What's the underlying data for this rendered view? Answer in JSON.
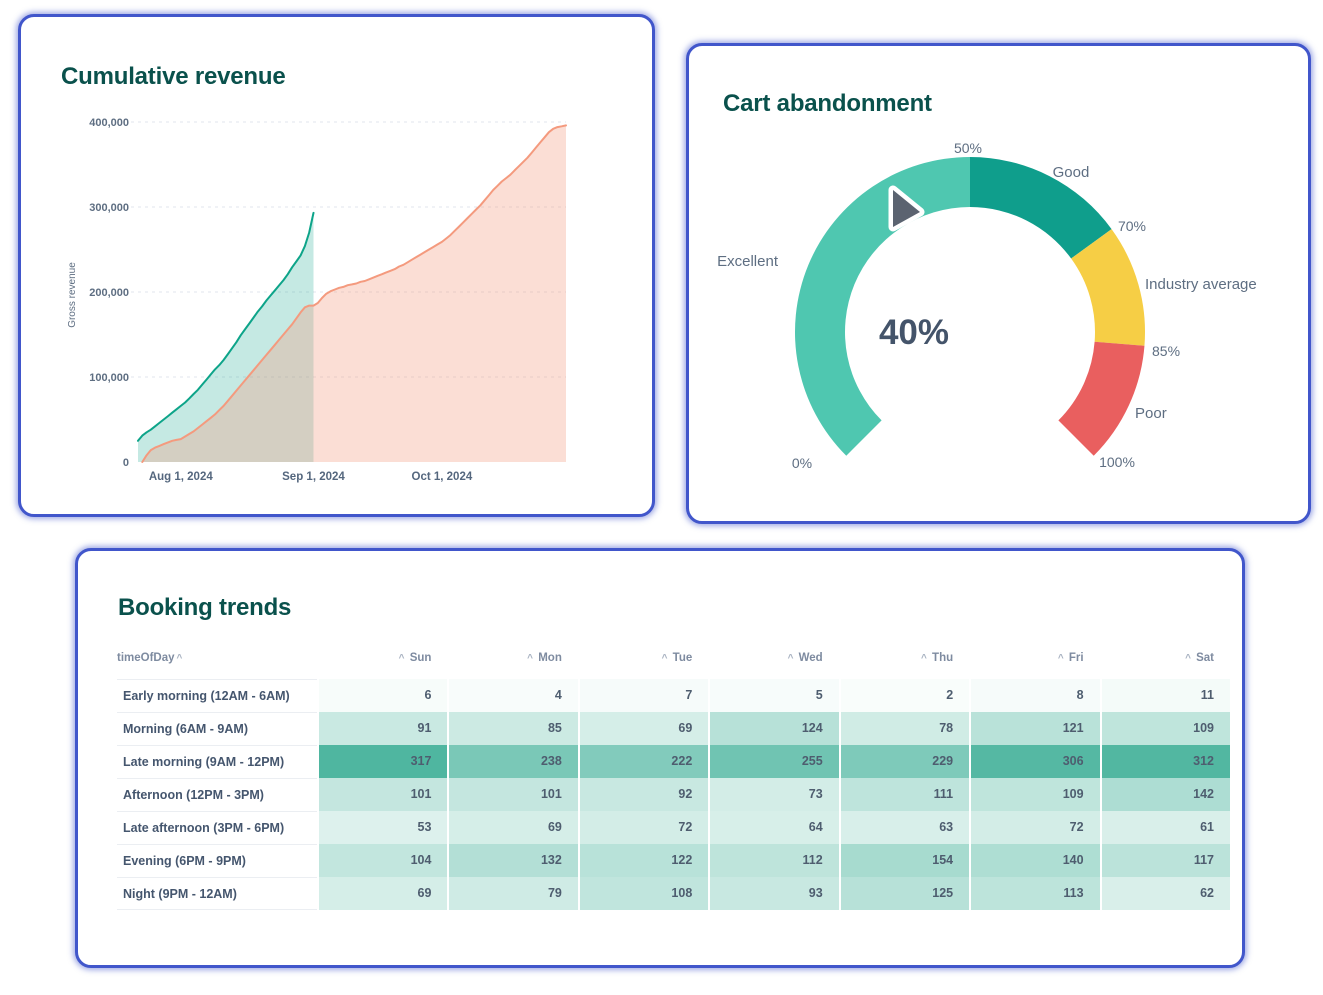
{
  "accent_colors": {
    "card_border": "#4156cb",
    "title_text": "#0a514c",
    "axis_text": "#5e6e82"
  },
  "chart_data": [
    {
      "type": "area",
      "title": "Cumulative revenue",
      "ylabel": "Gross revenue",
      "ylim": [
        0,
        400000
      ],
      "ytick_values": [
        0,
        100000,
        200000,
        300000,
        400000
      ],
      "ytick_labels": [
        "0",
        "100,000",
        "200,000",
        "300,000",
        "400,000"
      ],
      "x_domain_days": [
        0,
        100
      ],
      "xticks": [
        {
          "day": 10,
          "label": "Aug 1, 2024"
        },
        {
          "day": 41,
          "label": "Sep 1, 2024"
        },
        {
          "day": 71,
          "label": "Oct 1, 2024"
        }
      ],
      "grid": true,
      "series": [
        {
          "id": "teal-series",
          "line_color": "#0da489",
          "fill_color": "rgba(13,164,137,0.24)",
          "points": [
            [
              0,
              25000
            ],
            [
              1,
              31000
            ],
            [
              2,
              35000
            ],
            [
              3,
              38000
            ],
            [
              4,
              42000
            ],
            [
              5,
              46000
            ],
            [
              6,
              50000
            ],
            [
              7,
              54000
            ],
            [
              8,
              58000
            ],
            [
              9,
              62000
            ],
            [
              10,
              66000
            ],
            [
              11,
              70000
            ],
            [
              12,
              75000
            ],
            [
              13,
              80000
            ],
            [
              14,
              85000
            ],
            [
              15,
              91000
            ],
            [
              16,
              97000
            ],
            [
              17,
              103000
            ],
            [
              18,
              109000
            ],
            [
              19,
              114000
            ],
            [
              20,
              120000
            ],
            [
              21,
              127000
            ],
            [
              22,
              134000
            ],
            [
              23,
              141000
            ],
            [
              24,
              149000
            ],
            [
              25,
              156000
            ],
            [
              26,
              163000
            ],
            [
              27,
              170000
            ],
            [
              28,
              177000
            ],
            [
              29,
              183000
            ],
            [
              30,
              190000
            ],
            [
              31,
              196000
            ],
            [
              32,
              202000
            ],
            [
              33,
              208000
            ],
            [
              34,
              214000
            ],
            [
              35,
              221000
            ],
            [
              36,
              229000
            ],
            [
              37,
              236000
            ],
            [
              38,
              243000
            ],
            [
              39,
              254000
            ],
            [
              40,
              270000
            ],
            [
              41,
              293000
            ]
          ]
        },
        {
          "id": "salmon-series",
          "line_color": "#f49a7e",
          "fill_color": "rgba(244,154,126,0.33)",
          "points": [
            [
              1,
              0
            ],
            [
              2,
              8000
            ],
            [
              3,
              14000
            ],
            [
              4,
              17000
            ],
            [
              5,
              19000
            ],
            [
              6,
              21000
            ],
            [
              7,
              23000
            ],
            [
              8,
              25000
            ],
            [
              9,
              26000
            ],
            [
              10,
              27000
            ],
            [
              11,
              30000
            ],
            [
              12,
              33000
            ],
            [
              13,
              36000
            ],
            [
              14,
              40000
            ],
            [
              15,
              44000
            ],
            [
              16,
              48000
            ],
            [
              17,
              52000
            ],
            [
              18,
              56000
            ],
            [
              19,
              61000
            ],
            [
              20,
              66000
            ],
            [
              21,
              72000
            ],
            [
              22,
              78000
            ],
            [
              23,
              84000
            ],
            [
              24,
              90000
            ],
            [
              25,
              96000
            ],
            [
              26,
              102000
            ],
            [
              27,
              108000
            ],
            [
              28,
              114000
            ],
            [
              29,
              120000
            ],
            [
              30,
              126000
            ],
            [
              31,
              132000
            ],
            [
              32,
              138000
            ],
            [
              33,
              144000
            ],
            [
              34,
              150000
            ],
            [
              35,
              156000
            ],
            [
              36,
              162000
            ],
            [
              37,
              169000
            ],
            [
              38,
              176000
            ],
            [
              39,
              182000
            ],
            [
              40,
              184000
            ],
            [
              41,
              184000
            ],
            [
              42,
              187000
            ],
            [
              43,
              193000
            ],
            [
              44,
              198000
            ],
            [
              45,
              201000
            ],
            [
              46,
              203000
            ],
            [
              47,
              205000
            ],
            [
              48,
              206000
            ],
            [
              49,
              208000
            ],
            [
              50,
              209000
            ],
            [
              51,
              210000
            ],
            [
              52,
              212000
            ],
            [
              53,
              213000
            ],
            [
              54,
              215000
            ],
            [
              55,
              217000
            ],
            [
              56,
              219000
            ],
            [
              57,
              221000
            ],
            [
              58,
              223000
            ],
            [
              59,
              225000
            ],
            [
              60,
              227000
            ],
            [
              61,
              230000
            ],
            [
              62,
              232000
            ],
            [
              63,
              235000
            ],
            [
              64,
              238000
            ],
            [
              65,
              241000
            ],
            [
              66,
              244000
            ],
            [
              67,
              247000
            ],
            [
              68,
              250000
            ],
            [
              69,
              253000
            ],
            [
              70,
              256000
            ],
            [
              71,
              259000
            ],
            [
              72,
              263000
            ],
            [
              73,
              267000
            ],
            [
              74,
              272000
            ],
            [
              75,
              277000
            ],
            [
              76,
              282000
            ],
            [
              77,
              287000
            ],
            [
              78,
              292000
            ],
            [
              79,
              297000
            ],
            [
              80,
              302000
            ],
            [
              81,
              308000
            ],
            [
              82,
              314000
            ],
            [
              83,
              320000
            ],
            [
              84,
              325000
            ],
            [
              85,
              330000
            ],
            [
              86,
              334000
            ],
            [
              87,
              338000
            ],
            [
              88,
              343000
            ],
            [
              89,
              348000
            ],
            [
              90,
              353000
            ],
            [
              91,
              358000
            ],
            [
              92,
              364000
            ],
            [
              93,
              370000
            ],
            [
              94,
              376000
            ],
            [
              95,
              382000
            ],
            [
              96,
              388000
            ],
            [
              97,
              392000
            ],
            [
              98,
              394000
            ],
            [
              99,
              395000
            ],
            [
              100,
              396000
            ]
          ]
        }
      ]
    },
    {
      "type": "gauge",
      "title": "Cart abandonment",
      "value_percent": 40,
      "value_label": "40%",
      "value_color": "#44546a",
      "start_angle_deg": 225,
      "end_angle_deg": -45,
      "segments": [
        {
          "label": "Excellent",
          "from_pct": 0,
          "to_pct": 50,
          "color": "#4fc7b0"
        },
        {
          "label": "Good",
          "from_pct": 50,
          "to_pct": 70,
          "color": "#0f9e8c"
        },
        {
          "label": "Industry average",
          "from_pct": 70,
          "to_pct": 85,
          "color": "#f6ce45"
        },
        {
          "label": "Poor",
          "from_pct": 85,
          "to_pct": 100,
          "color": "#e95f5f"
        }
      ],
      "tick_labels": [
        "0%",
        "50%",
        "70%",
        "85%",
        "100%"
      ],
      "needle_color": "#5b6370",
      "label_color": "#5e6e82"
    },
    {
      "type": "heatmap",
      "title": "Booking trends",
      "row_header": "timeOfDay",
      "sort_icon": "^",
      "columns": [
        "Sun",
        "Mon",
        "Tue",
        "Wed",
        "Thu",
        "Fri",
        "Sat"
      ],
      "rows": [
        {
          "label": "Early morning (12AM - 6AM)",
          "values": [
            6,
            4,
            7,
            5,
            2,
            8,
            11
          ]
        },
        {
          "label": "Morning (6AM - 9AM)",
          "values": [
            91,
            85,
            69,
            124,
            78,
            121,
            109
          ]
        },
        {
          "label": "Late morning (9AM - 12PM)",
          "values": [
            317,
            238,
            222,
            255,
            229,
            306,
            312
          ]
        },
        {
          "label": "Afternoon (12PM - 3PM)",
          "values": [
            101,
            101,
            92,
            73,
            111,
            109,
            142
          ]
        },
        {
          "label": "Late afternoon (3PM - 6PM)",
          "values": [
            53,
            69,
            72,
            64,
            63,
            72,
            61
          ]
        },
        {
          "label": "Evening (6PM - 9PM)",
          "values": [
            104,
            132,
            122,
            112,
            154,
            140,
            117
          ]
        },
        {
          "label": "Night (9PM - 12AM)",
          "values": [
            69,
            79,
            108,
            93,
            125,
            113,
            62
          ]
        }
      ],
      "color_scale": {
        "min": 0,
        "max": 317,
        "min_color": "#fafdfc",
        "max_color": "#4fb6a0"
      }
    }
  ]
}
